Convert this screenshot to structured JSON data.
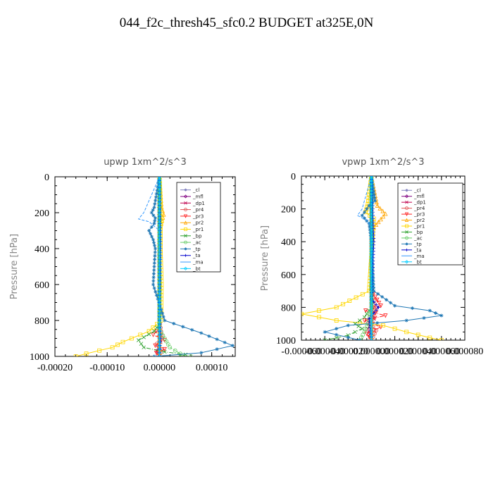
{
  "title": "044_f2c_thresh45_sfc0.2  BUDGET at325E,0N",
  "chart_data": [
    {
      "type": "line",
      "title": "upwp   1xm^2/s^3",
      "ylabel": "Pressure [hPa]",
      "xlabel": "",
      "xlim": [
        -0.0002,
        0.000145
      ],
      "ylim": [
        1000,
        0
      ],
      "y_ticks": [
        0,
        200,
        400,
        600,
        800,
        1000
      ],
      "x_ticks": [
        -0.0002,
        -0.0001,
        0.0,
        0.0001
      ],
      "x_tick_labels": [
        "-0.00020",
        "-0.00010",
        "0.00000",
        "0.00010"
      ],
      "legend_position": "top-right",
      "series": [
        {
          "name": "_cl",
          "color": "#7f7fbf",
          "x": [
            0,
            0,
            0,
            0
          ],
          "y": [
            0,
            300,
            700,
            1000
          ]
        },
        {
          "name": "_mfl",
          "color": "#800080",
          "x": [
            0,
            0,
            0,
            0
          ],
          "y": [
            0,
            300,
            700,
            1000
          ]
        },
        {
          "name": "_dp1",
          "color": "#c0004d",
          "x": [
            0,
            0,
            0,
            0,
            2e-06,
            -5e-06,
            0
          ],
          "y": [
            0,
            300,
            700,
            860,
            920,
            970,
            1000
          ]
        },
        {
          "name": "_pr4",
          "color": "#e05050",
          "x": [
            0,
            0,
            0,
            5e-06,
            -5e-06,
            4e-06,
            0
          ],
          "y": [
            0,
            300,
            800,
            900,
            930,
            960,
            1000
          ]
        },
        {
          "name": "_pr3",
          "color": "#ff2020",
          "x": [
            0,
            0,
            0,
            -1.2e-05,
            1e-05,
            -8e-06,
            1e-05,
            -6e-06,
            0
          ],
          "y": [
            0,
            300,
            840,
            880,
            910,
            940,
            960,
            980,
            1000
          ]
        },
        {
          "name": "_pr2",
          "color": "#ffa500",
          "x": [
            0,
            4e-06,
            8e-06,
            3e-06,
            0,
            0
          ],
          "y": [
            0,
            170,
            210,
            260,
            320,
            1000
          ]
        },
        {
          "name": "_pr1",
          "color": "#ffd700",
          "x": [
            0,
            3e-06,
            5e-06,
            2e-06,
            2e-06,
            4e-06,
            3e-06,
            -2e-05,
            -7e-05,
            -9e-05,
            -0.00014,
            -0.00016
          ],
          "y": [
            0,
            190,
            230,
            280,
            400,
            600,
            800,
            860,
            920,
            950,
            985,
            1000
          ]
        },
        {
          "name": "_bp",
          "color": "#2ca02c",
          "x": [
            0,
            0,
            0,
            -1e-05,
            -4e-05,
            -3e-05,
            1e-05,
            5e-05,
            4e-05
          ],
          "y": [
            0,
            300,
            820,
            860,
            910,
            950,
            975,
            990,
            1000
          ]
        },
        {
          "name": "_ac",
          "color": "#66cc66",
          "x": [
            0,
            0,
            0,
            1e-05,
            2e-05,
            4e-05,
            6e-05
          ],
          "y": [
            0,
            300,
            850,
            900,
            950,
            985,
            1000
          ]
        },
        {
          "name": "_tp",
          "color": "#1f77b4",
          "x": [
            0,
            -1e-05,
            -1.5e-05,
            -8e-06,
            -1e-05,
            -2e-05,
            -1.2e-05,
            -8e-06,
            -1e-05,
            -1.2e-05,
            1e-05,
            8e-05,
            0.00014,
            8e-05,
            -1e-05
          ],
          "y": [
            0,
            170,
            200,
            230,
            260,
            300,
            350,
            400,
            500,
            600,
            800,
            870,
            940,
            980,
            1000
          ]
        },
        {
          "name": "_ta",
          "color": "#0000cc",
          "x": [
            0,
            2e-06,
            0,
            2e-06,
            0
          ],
          "y": [
            0,
            400,
            800,
            900,
            1000
          ]
        },
        {
          "name": "_ma",
          "color": "#3399ff",
          "x": [
            0,
            -3e-05,
            -4e-05,
            -2e-05,
            0,
            0
          ],
          "y": [
            0,
            200,
            235,
            250,
            300,
            1000
          ]
        },
        {
          "name": "_bt",
          "color": "#00ccff",
          "x": [
            0,
            0,
            0,
            0
          ],
          "y": [
            0,
            300,
            700,
            1000
          ]
        }
      ]
    },
    {
      "type": "line",
      "title": "vpwp   1xm^2/s^3",
      "ylabel": "Pressure [hPa]",
      "xlabel": "",
      "xlim": [
        -6e-05,
        8e-05
      ],
      "ylim": [
        1000,
        0
      ],
      "y_ticks": [
        0,
        200,
        400,
        600,
        800,
        1000
      ],
      "x_ticks": [
        -6e-05,
        -4e-05,
        -2e-05,
        0.0,
        2e-05,
        4e-05,
        6e-05,
        8e-05
      ],
      "x_tick_labels": [
        "-0.000060",
        "-0.000040",
        "-0.000020",
        "0.000000",
        "0.000020",
        "0.000040",
        "0.000060",
        "0.000080"
      ],
      "legend_position": "top-right",
      "series": [
        {
          "name": "_cl",
          "color": "#7f7fbf",
          "x": [
            0,
            0,
            0,
            0
          ],
          "y": [
            0,
            300,
            700,
            1000
          ]
        },
        {
          "name": "_mfl",
          "color": "#800080",
          "x": [
            0,
            0,
            0,
            0
          ],
          "y": [
            0,
            300,
            700,
            1000
          ]
        },
        {
          "name": "_dp1",
          "color": "#c0004d",
          "x": [
            0,
            0,
            0,
            2e-06,
            -3e-06,
            0
          ],
          "y": [
            0,
            300,
            800,
            870,
            930,
            1000
          ]
        },
        {
          "name": "_pr4",
          "color": "#e05050",
          "x": [
            0,
            0,
            4e-06,
            -4e-06,
            4e-06,
            0
          ],
          "y": [
            0,
            700,
            820,
            880,
            940,
            1000
          ]
        },
        {
          "name": "_pr3",
          "color": "#ff2020",
          "x": [
            0,
            0,
            8e-06,
            -5e-06,
            1.2e-05,
            -6e-06,
            8e-06,
            -4e-06,
            0
          ],
          "y": [
            0,
            700,
            790,
            820,
            850,
            880,
            920,
            960,
            1000
          ]
        },
        {
          "name": "_pr2",
          "color": "#ffa500",
          "x": [
            0,
            5e-06,
            1.2e-05,
            6e-06,
            0,
            0
          ],
          "y": [
            0,
            180,
            230,
            280,
            330,
            1000
          ]
        },
        {
          "name": "_pr1",
          "color": "#ffd700",
          "x": [
            0,
            -3e-06,
            -5e-06,
            2e-06,
            -2e-06,
            -3e-05,
            -6e-05,
            -3e-05,
            1e-05,
            3e-05,
            5e-05,
            6e-05
          ],
          "y": [
            0,
            170,
            220,
            260,
            700,
            800,
            840,
            880,
            910,
            950,
            985,
            1000
          ]
        },
        {
          "name": "_bp",
          "color": "#2ca02c",
          "x": [
            0,
            0,
            0,
            -6e-06,
            -1.4e-05,
            -8e-06,
            -2e-05,
            -4e-05
          ],
          "y": [
            0,
            300,
            800,
            860,
            900,
            930,
            970,
            1000
          ]
        },
        {
          "name": "_ac",
          "color": "#66cc66",
          "x": [
            0,
            0,
            0,
            -2e-06,
            -6e-06,
            -1e-05
          ],
          "y": [
            0,
            300,
            800,
            880,
            950,
            1000
          ]
        },
        {
          "name": "_tp",
          "color": "#1f77b4",
          "x": [
            0,
            3e-06,
            -2e-06,
            -8e-06,
            -2e-06,
            0,
            2e-06,
            2e-05,
            5e-05,
            6e-05,
            3e-05,
            -2e-05,
            -4e-05,
            -1e-05
          ],
          "y": [
            0,
            150,
            180,
            240,
            290,
            400,
            700,
            790,
            820,
            850,
            880,
            910,
            950,
            1000
          ]
        },
        {
          "name": "_ta",
          "color": "#0000cc",
          "x": [
            0,
            2e-06,
            0,
            6e-06,
            -2e-06,
            0
          ],
          "y": [
            0,
            400,
            750,
            800,
            870,
            1000
          ]
        },
        {
          "name": "_ma",
          "color": "#3399ff",
          "x": [
            0,
            -8e-06,
            -1.2e-05,
            -4e-06,
            0,
            0
          ],
          "y": [
            0,
            200,
            240,
            270,
            310,
            1000
          ]
        },
        {
          "name": "_bt",
          "color": "#00ccff",
          "x": [
            0,
            0,
            0,
            0
          ],
          "y": [
            0,
            300,
            700,
            1000
          ]
        }
      ]
    }
  ]
}
